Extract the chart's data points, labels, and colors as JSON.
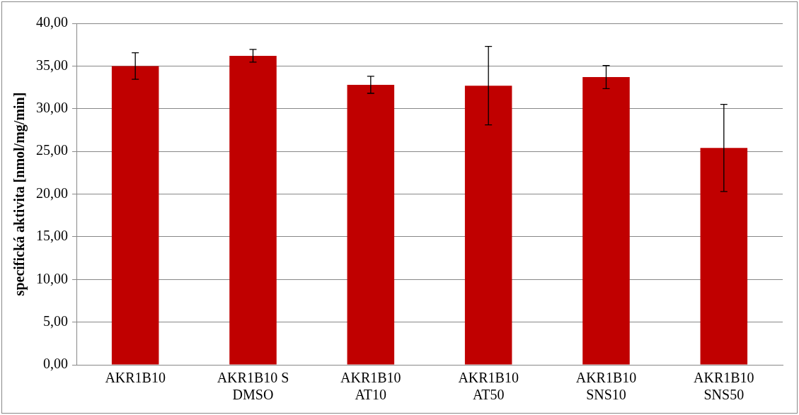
{
  "chart_data": {
    "type": "bar",
    "ylabel": "specifická aktivita [nmol/mg/min]",
    "categories": [
      "AKR1B10",
      "AKR1B10 S DMSO",
      "AKR1B10 AT10",
      "AKR1B10 AT50",
      "AKR1B10 SNS10",
      "AKR1B10 SNS50"
    ],
    "values": [
      35.0,
      36.2,
      32.8,
      32.7,
      33.7,
      25.4
    ],
    "errors": [
      1.55,
      0.75,
      1.0,
      4.6,
      1.35,
      5.1
    ],
    "color": "#c00000",
    "ylim": [
      0,
      40
    ],
    "yticks": [
      {
        "value": 0,
        "label": "0,00"
      },
      {
        "value": 5,
        "label": "5,00"
      },
      {
        "value": 10,
        "label": "10,00"
      },
      {
        "value": 15,
        "label": "15,00"
      },
      {
        "value": 20,
        "label": "20,00"
      },
      {
        "value": 25,
        "label": "25,00"
      },
      {
        "value": 30,
        "label": "30,00"
      },
      {
        "value": 35,
        "label": "35,00"
      },
      {
        "value": 40,
        "label": "40,00"
      }
    ],
    "grid": "y"
  }
}
